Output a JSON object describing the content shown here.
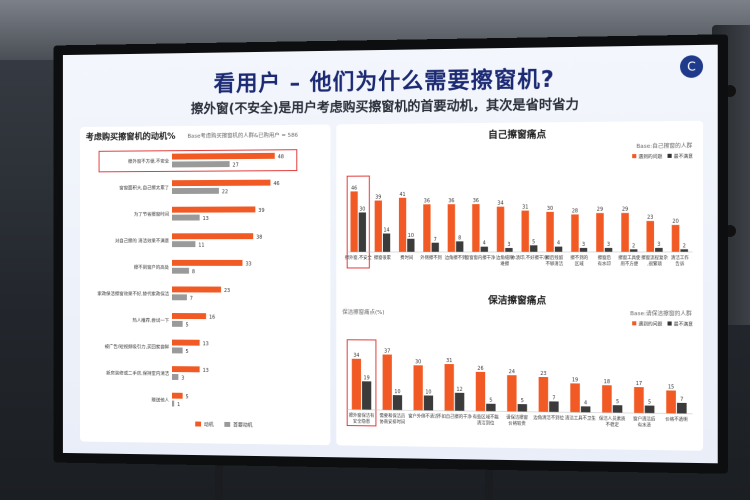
{
  "slide": {
    "title": "看用户 – 他们为什么需要擦窗机?",
    "subtitle": "擦外窗(不安全)是用户考虑购买擦窗机的首要动机，其次是省时省力"
  },
  "left_panel": {
    "title": "考虑购买擦窗机的动机%",
    "note": "Base考虑购买擦窗机的人群&已购用户 = 586"
  },
  "right_top": {
    "title": "自己擦窗痛点",
    "note": "Base:自己擦窗的人群"
  },
  "right_bottom": {
    "title": "保洁擦窗痛点",
    "axis_note": "保洁擦窗痛点(%)",
    "note": "Base:请保洁擦窗的人群"
  },
  "colors": {
    "primary": "#f15a24",
    "secondary": "#9a9a9a",
    "highlight": "#e23b3b",
    "title": "#1b2a73"
  },
  "chart_data": [
    {
      "type": "bar",
      "orientation": "horizontal",
      "title": "考虑购买擦窗机的动机%",
      "categories": [
        "擦外窗不方便,不安全",
        "窗窗面积大,自己擦太累了",
        "为了节省擦窗时间",
        "对自己擦的 清洁效果不满意",
        "擦不到窗户的高处",
        "家政保洁擦窗效果不好,替代家政保洁",
        "热人推荐,尝试一下",
        "被广告/短视频吸引力,买回家尝鲜",
        "新房装修或二手房,保持室内清洁",
        "赠送他人"
      ],
      "series": [
        {
          "name": "动机",
          "values": [
            48,
            46,
            39,
            38,
            33,
            23,
            16,
            13,
            13,
            5
          ]
        },
        {
          "name": "首要动机",
          "values": [
            27,
            22,
            13,
            11,
            8,
            7,
            5,
            5,
            3,
            1
          ]
        }
      ],
      "highlight_index": 0
    },
    {
      "type": "bar",
      "title": "自己擦窗痛点",
      "legend": [
        "遇到的问题",
        "最不满意"
      ],
      "categories": [
        "擦外窗,不安全",
        "擦窗很累",
        "费时间",
        "外侧擦不到",
        "边角擦不到",
        "窗窗窗内擦干净",
        "边角缝隙 难擦",
        "水渍印,不好擦干净",
        "擦后残留 不够清洁",
        "擦不到的 区域",
        "擦窗后 有水印",
        "擦窗工具使 用不方便",
        "擦窗流程复杂 ,很繁琐",
        "清洁工作 告诉"
      ],
      "series": [
        {
          "name": "遇到的问题",
          "values": [
            46,
            39,
            41,
            36,
            36,
            36,
            34,
            31,
            30,
            28,
            29,
            29,
            23,
            20
          ]
        },
        {
          "name": "最不满意",
          "values": [
            30,
            14,
            10,
            7,
            8,
            4,
            3,
            5,
            4,
            3,
            3,
            2,
            3,
            2
          ]
        }
      ],
      "highlight_index": 0
    },
    {
      "type": "bar",
      "title": "保洁擦窗痛点",
      "legend": [
        "遇到的问题",
        "最不满意"
      ],
      "categories": [
        "擦外窗保洁有 安全隐患",
        "需要和保洁员 协商安排时间",
        "窗户外侧不清洁",
        "不如自己擦的干净",
        "有些区域不能 清洁到位",
        "请保洁擦窗 价格较贵",
        "边角清洁不到位",
        "清洁工具不卫生",
        "保洁人员素质 不稳定",
        "窗户清洁后 有水渍",
        "价格不透明"
      ],
      "series": [
        {
          "name": "遇到的问题",
          "values": [
            34,
            37,
            30,
            31,
            26,
            24,
            23,
            19,
            18,
            17,
            15
          ]
        },
        {
          "name": "最不满意",
          "values": [
            19,
            10,
            10,
            12,
            5,
            5,
            7,
            4,
            5,
            5,
            7
          ]
        }
      ],
      "highlight_index": 0
    }
  ]
}
